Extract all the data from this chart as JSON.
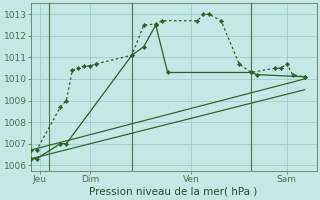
{
  "background_color": "#c5e8e5",
  "plot_bg": "#c5e8e5",
  "grid_color": "#9ecece",
  "line_color": "#2a5e2a",
  "title": "Pression niveau de la mer( hPa )",
  "ylim": [
    1005.75,
    1013.5
  ],
  "yticks": [
    1006,
    1007,
    1008,
    1009,
    1010,
    1011,
    1012,
    1013
  ],
  "xlim": [
    0,
    24
  ],
  "vlines": [
    1.5,
    8.5,
    18.5
  ],
  "x_tick_positions": [
    0.75,
    5.0,
    13.5,
    21.5
  ],
  "x_tick_labels": [
    "Jeu",
    "Dim",
    "Ven",
    "Sam"
  ],
  "series1_dotted": {
    "x": [
      0,
      0.5,
      2.5,
      3.0,
      3.5,
      4.0,
      4.5,
      5.0,
      5.5,
      8.5,
      9.5,
      10.5,
      11.0,
      14.0,
      14.5,
      15.0,
      16.0,
      17.5,
      18.5,
      20.5,
      21.0,
      21.5,
      22.0,
      23.0
    ],
    "y": [
      1006.7,
      1006.7,
      1008.7,
      1009.0,
      1010.4,
      1010.5,
      1010.6,
      1010.6,
      1010.7,
      1011.1,
      1012.5,
      1012.55,
      1012.7,
      1012.7,
      1013.0,
      1013.0,
      1012.7,
      1010.7,
      1010.3,
      1010.5,
      1010.5,
      1010.7,
      1010.2,
      1010.1
    ]
  },
  "series2_solid_markers": {
    "x": [
      0,
      0.5,
      2.5,
      3.0,
      8.5,
      9.5,
      10.5,
      11.5,
      18.5,
      19.0,
      23.0
    ],
    "y": [
      1006.3,
      1006.3,
      1007.0,
      1007.0,
      1011.1,
      1011.5,
      1012.5,
      1010.3,
      1010.3,
      1010.2,
      1010.1
    ]
  },
  "series3_plain": {
    "x": [
      0,
      23
    ],
    "y": [
      1006.7,
      1010.0
    ]
  },
  "series4_plain": {
    "x": [
      0,
      23
    ],
    "y": [
      1006.3,
      1009.5
    ]
  }
}
